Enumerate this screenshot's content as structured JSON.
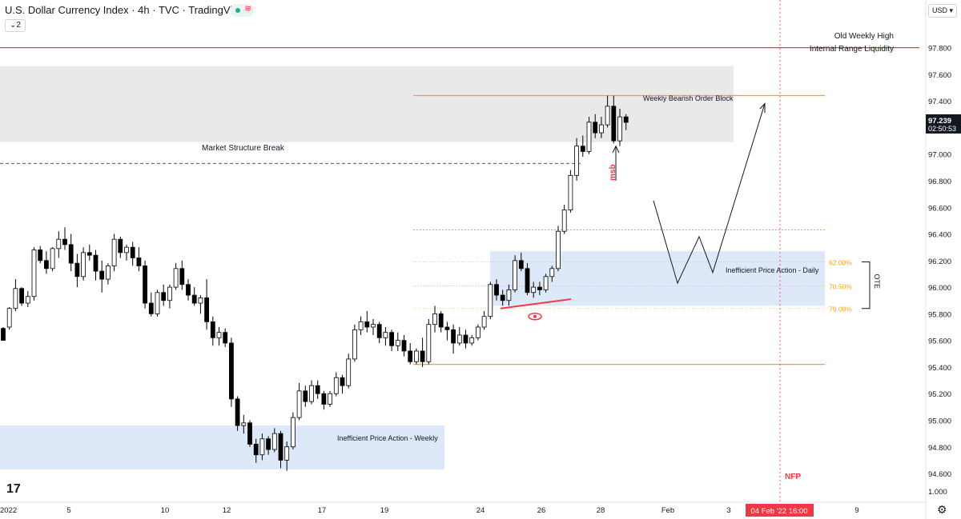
{
  "header": {
    "title": "U.S. Dollar Currency Index · 4h · TVC · TradingView",
    "layers_count": "2",
    "currency": "USD"
  },
  "colors": {
    "up": "#ffffff",
    "down": "#000000",
    "wick": "#000000",
    "red_line": "#f23645",
    "orange": "#f7a21b",
    "gray_zone": "#e9e9ec",
    "blue_zone": "#dde9f8"
  },
  "chart_data": {
    "type": "candlestick",
    "y_axis": {
      "ylim": [
        94.48,
        98.05
      ],
      "ticks": [
        "97.800",
        "97.600",
        "97.400",
        "97.200",
        "97.000",
        "96.800",
        "96.600",
        "96.400",
        "96.200",
        "96.000",
        "95.800",
        "95.600",
        "95.400",
        "95.200",
        "95.000",
        "94.800",
        "94.600"
      ],
      "tick_values": [
        97.8,
        97.6,
        97.4,
        97.2,
        97.0,
        96.8,
        96.6,
        96.4,
        96.2,
        96.0,
        95.8,
        95.6,
        95.4,
        95.2,
        95.0,
        94.8,
        94.6
      ],
      "bottom_label": "1.000",
      "price_label": "97.239",
      "countdown": "02:50:53"
    },
    "x_axis": {
      "labels": [
        "2022",
        "5",
        "10",
        "12",
        "17",
        "19",
        "24",
        "26",
        "28",
        "Feb",
        "3",
        "9"
      ],
      "highlight_label": "04 Feb '22  16:00"
    },
    "candles": [
      [
        95.69,
        95.7,
        95.61,
        95.6
      ],
      [
        95.7,
        95.85,
        95.68,
        95.84
      ],
      [
        95.84,
        96.06,
        95.82,
        95.99
      ],
      [
        95.99,
        96.0,
        95.86,
        95.88
      ],
      [
        95.88,
        95.97,
        95.85,
        95.93
      ],
      [
        95.93,
        96.3,
        95.9,
        96.28
      ],
      [
        96.28,
        96.31,
        96.18,
        96.2
      ],
      [
        96.2,
        96.27,
        96.1,
        96.14
      ],
      [
        96.14,
        96.3,
        96.12,
        96.29
      ],
      [
        96.29,
        96.42,
        96.22,
        96.36
      ],
      [
        96.36,
        96.45,
        96.28,
        96.32
      ],
      [
        96.32,
        96.4,
        96.12,
        96.18
      ],
      [
        96.18,
        96.25,
        96.0,
        96.08
      ],
      [
        96.08,
        96.3,
        96.05,
        96.26
      ],
      [
        96.26,
        96.32,
        96.2,
        96.24
      ],
      [
        96.24,
        96.28,
        96.05,
        96.12
      ],
      [
        96.12,
        96.2,
        95.96,
        96.06
      ],
      [
        96.06,
        96.18,
        96.02,
        96.16
      ],
      [
        96.16,
        96.4,
        96.12,
        96.36
      ],
      [
        96.36,
        96.38,
        96.22,
        96.26
      ],
      [
        96.26,
        96.32,
        96.2,
        96.3
      ],
      [
        96.3,
        96.34,
        96.16,
        96.22
      ],
      [
        96.22,
        96.3,
        96.12,
        96.16
      ],
      [
        96.16,
        96.2,
        95.84,
        95.88
      ],
      [
        95.88,
        95.96,
        95.78,
        95.8
      ],
      [
        95.8,
        95.98,
        95.78,
        95.96
      ],
      [
        95.96,
        96.02,
        95.86,
        95.9
      ],
      [
        95.9,
        96.02,
        95.84,
        96.0
      ],
      [
        96.0,
        96.18,
        95.98,
        96.14
      ],
      [
        96.14,
        96.2,
        95.98,
        96.02
      ],
      [
        96.02,
        96.06,
        95.9,
        95.94
      ],
      [
        95.94,
        96.0,
        95.86,
        95.88
      ],
      [
        95.88,
        95.94,
        95.8,
        95.92
      ],
      [
        95.92,
        96.06,
        95.68,
        95.74
      ],
      [
        95.74,
        95.78,
        95.56,
        95.62
      ],
      [
        95.62,
        95.7,
        95.56,
        95.66
      ],
      [
        95.66,
        95.69,
        95.55,
        95.58
      ],
      [
        95.58,
        95.62,
        95.1,
        95.16
      ],
      [
        95.16,
        95.18,
        94.92,
        94.96
      ],
      [
        94.96,
        95.04,
        94.9,
        94.98
      ],
      [
        94.98,
        95.0,
        94.8,
        94.82
      ],
      [
        94.82,
        94.86,
        94.68,
        94.74
      ],
      [
        94.74,
        94.9,
        94.7,
        94.86
      ],
      [
        94.86,
        94.88,
        94.74,
        94.78
      ],
      [
        94.78,
        94.94,
        94.76,
        94.9
      ],
      [
        94.9,
        94.92,
        94.64,
        94.7
      ],
      [
        94.7,
        94.84,
        94.62,
        94.8
      ],
      [
        94.8,
        95.06,
        94.78,
        95.02
      ],
      [
        95.02,
        95.28,
        95.0,
        95.22
      ],
      [
        95.22,
        95.26,
        95.1,
        95.14
      ],
      [
        95.14,
        95.3,
        95.12,
        95.26
      ],
      [
        95.26,
        95.3,
        95.16,
        95.2
      ],
      [
        95.2,
        95.22,
        95.08,
        95.12
      ],
      [
        95.12,
        95.22,
        95.1,
        95.2
      ],
      [
        95.2,
        95.36,
        95.18,
        95.32
      ],
      [
        95.32,
        95.34,
        95.2,
        95.26
      ],
      [
        95.26,
        95.5,
        95.24,
        95.46
      ],
      [
        95.46,
        95.72,
        95.44,
        95.68
      ],
      [
        95.68,
        95.78,
        95.64,
        95.74
      ],
      [
        95.74,
        95.82,
        95.66,
        95.7
      ],
      [
        95.7,
        95.76,
        95.64,
        95.72
      ],
      [
        95.72,
        95.74,
        95.58,
        95.62
      ],
      [
        95.62,
        95.7,
        95.56,
        95.66
      ],
      [
        95.66,
        95.68,
        95.52,
        95.56
      ],
      [
        95.56,
        95.66,
        95.52,
        95.6
      ],
      [
        95.6,
        95.64,
        95.48,
        95.52
      ],
      [
        95.52,
        95.58,
        95.42,
        95.44
      ],
      [
        95.44,
        95.54,
        95.42,
        95.52
      ],
      [
        95.52,
        95.62,
        95.4,
        95.44
      ],
      [
        95.44,
        95.76,
        95.42,
        95.72
      ],
      [
        95.72,
        95.86,
        95.66,
        95.8
      ],
      [
        95.8,
        95.82,
        95.66,
        95.7
      ],
      [
        95.7,
        95.74,
        95.6,
        95.68
      ],
      [
        95.68,
        95.72,
        95.5,
        95.58
      ],
      [
        95.58,
        95.7,
        95.56,
        95.64
      ],
      [
        95.64,
        95.68,
        95.54,
        95.58
      ],
      [
        95.58,
        95.64,
        95.56,
        95.62
      ],
      [
        95.62,
        95.72,
        95.6,
        95.7
      ],
      [
        95.7,
        95.82,
        95.68,
        95.78
      ],
      [
        95.78,
        96.04,
        95.76,
        96.02
      ],
      [
        96.02,
        96.06,
        95.9,
        95.94
      ],
      [
        95.94,
        95.98,
        95.86,
        95.9
      ],
      [
        95.9,
        96.02,
        95.86,
        95.98
      ],
      [
        95.98,
        96.24,
        95.96,
        96.2
      ],
      [
        96.2,
        96.26,
        96.12,
        96.14
      ],
      [
        96.14,
        96.18,
        95.94,
        95.96
      ],
      [
        95.96,
        96.04,
        95.92,
        96.0
      ],
      [
        96.0,
        96.04,
        95.94,
        95.98
      ],
      [
        95.98,
        96.1,
        95.96,
        96.08
      ],
      [
        96.08,
        96.16,
        96.04,
        96.14
      ],
      [
        96.14,
        96.46,
        96.12,
        96.42
      ],
      [
        96.42,
        96.62,
        96.4,
        96.58
      ],
      [
        96.58,
        96.88,
        96.56,
        96.84
      ],
      [
        96.84,
        97.12,
        96.8,
        97.06
      ],
      [
        97.06,
        97.14,
        96.98,
        97.02
      ],
      [
        97.02,
        97.28,
        97.0,
        97.24
      ],
      [
        97.24,
        97.3,
        97.12,
        97.16
      ],
      [
        97.16,
        97.28,
        97.12,
        97.22
      ],
      [
        97.22,
        97.44,
        97.2,
        97.36
      ],
      [
        97.36,
        97.44,
        97.08,
        97.1
      ],
      [
        97.1,
        97.34,
        97.06,
        97.28
      ],
      [
        97.28,
        97.3,
        97.18,
        97.239
      ]
    ],
    "levels": [
      {
        "name": "Old Weekly High",
        "value": 97.8
      },
      {
        "name": "Internal Range Liquidity",
        "value": 97.8
      },
      {
        "name": "weekly-high-line",
        "value": 97.44
      },
      {
        "name": "Market Structure Break",
        "value": 96.93
      },
      {
        "name": "dotted-upper",
        "value": 96.43
      },
      {
        "name": "62.00%",
        "value": 96.19
      },
      {
        "name": "70.50%",
        "value": 96.01
      },
      {
        "name": "79.00%",
        "value": 95.84
      },
      {
        "name": "low-line",
        "value": 95.42
      }
    ],
    "zones": [
      {
        "label": "Weekly Bearish Order Block",
        "top": 97.66,
        "bottom": 97.09
      },
      {
        "label": "Inefficient Price Action - Daily",
        "top": 96.27,
        "bottom": 95.86
      },
      {
        "label": "Inefficient Price Action - Weekly",
        "top": 94.96,
        "bottom": 94.63
      }
    ],
    "annotations": {
      "msb": "msb",
      "ote": "OTE",
      "nfp": "NFP",
      "fib_labels": [
        "62.00%",
        "70.50%",
        "79.00%"
      ]
    }
  }
}
